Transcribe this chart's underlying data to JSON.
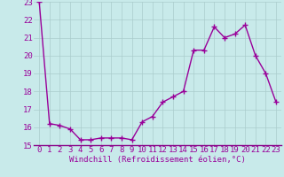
{
  "x": [
    0,
    1,
    2,
    3,
    4,
    5,
    6,
    7,
    8,
    9,
    10,
    11,
    12,
    13,
    14,
    15,
    16,
    17,
    18,
    19,
    20,
    21,
    22,
    23
  ],
  "y": [
    23.0,
    16.2,
    16.1,
    15.9,
    15.3,
    15.3,
    15.4,
    15.4,
    15.4,
    15.3,
    16.3,
    16.6,
    17.4,
    17.7,
    18.0,
    20.3,
    20.3,
    21.6,
    21.0,
    21.2,
    21.7,
    20.0,
    19.0,
    17.4
  ],
  "line_color": "#990099",
  "marker": "+",
  "marker_size": 4,
  "bg_color": "#c8eaea",
  "grid_color": "#aacccc",
  "xlabel": "Windchill (Refroidissement éolien,°C)",
  "xlim_min": -0.5,
  "xlim_max": 23.5,
  "ylim_min": 15,
  "ylim_max": 23,
  "yticks": [
    15,
    16,
    17,
    18,
    19,
    20,
    21,
    22,
    23
  ],
  "xticks": [
    0,
    1,
    2,
    3,
    4,
    5,
    6,
    7,
    8,
    9,
    10,
    11,
    12,
    13,
    14,
    15,
    16,
    17,
    18,
    19,
    20,
    21,
    22,
    23
  ],
  "xlabel_fontsize": 6.5,
  "tick_fontsize": 6.5,
  "line_width": 1.0,
  "border_color": "#880088"
}
